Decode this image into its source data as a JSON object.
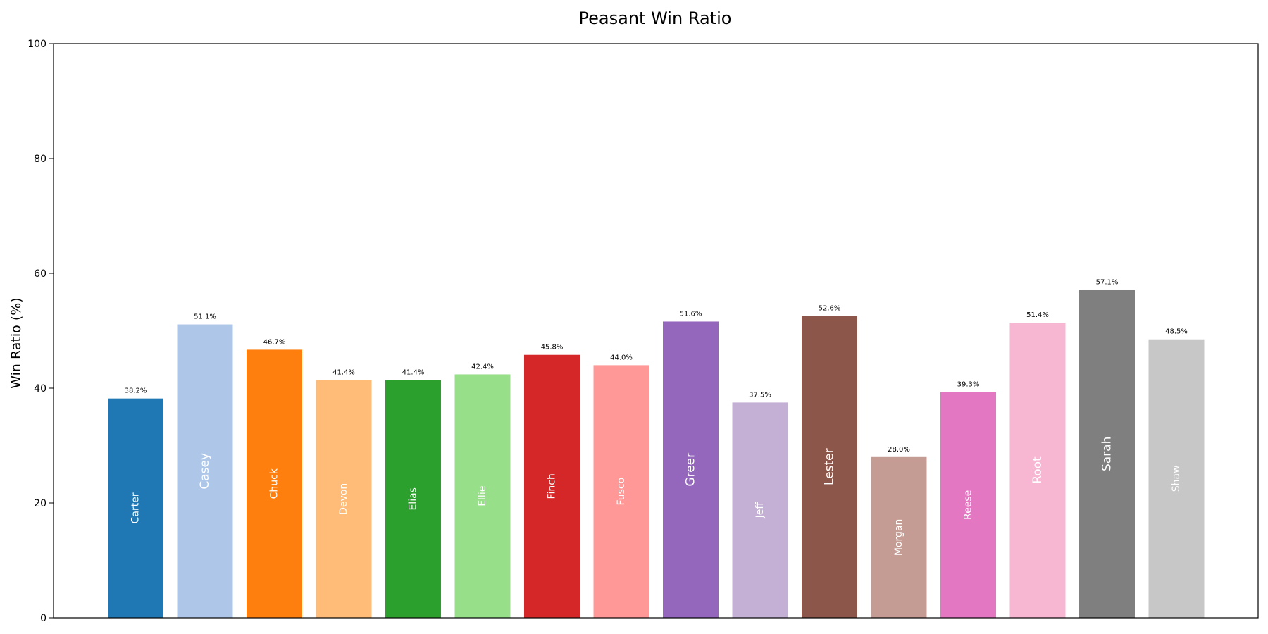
{
  "chart_data": {
    "type": "bar",
    "title": "Peasant Win Ratio",
    "xlabel": "",
    "ylabel": "Win Ratio (%)",
    "ylim": [
      0,
      100
    ],
    "yticks": [
      0,
      20,
      40,
      60,
      80,
      100
    ],
    "grid": false,
    "legend": false,
    "categories": [
      "Carter",
      "Casey",
      "Chuck",
      "Devon",
      "Elias",
      "Ellie",
      "Finch",
      "Fusco",
      "Greer",
      "Jeff",
      "Lester",
      "Morgan",
      "Reese",
      "Root",
      "Sarah",
      "Shaw"
    ],
    "values": [
      38.2,
      51.1,
      46.7,
      41.4,
      41.4,
      42.4,
      45.8,
      44.0,
      51.6,
      37.5,
      52.6,
      28.0,
      39.3,
      51.4,
      57.1,
      48.5
    ],
    "value_labels": [
      "38.2%",
      "51.1%",
      "46.7%",
      "41.4%",
      "41.4%",
      "42.4%",
      "45.8%",
      "44.0%",
      "51.6%",
      "37.5%",
      "52.6%",
      "28.0%",
      "39.3%",
      "51.4%",
      "57.1%",
      "48.5%"
    ],
    "colors": [
      "#1f77b4",
      "#aec7e8",
      "#ff7f0e",
      "#ffbb78",
      "#2ca02c",
      "#98df8a",
      "#d62728",
      "#ff9896",
      "#9467bd",
      "#c5b0d5",
      "#8c564b",
      "#c49c94",
      "#e377c2",
      "#f7b6d2",
      "#7f7f7f",
      "#c7c7c7"
    ],
    "label_emphasis": [
      false,
      true,
      false,
      false,
      false,
      false,
      false,
      false,
      true,
      false,
      true,
      false,
      false,
      true,
      true,
      false
    ]
  }
}
